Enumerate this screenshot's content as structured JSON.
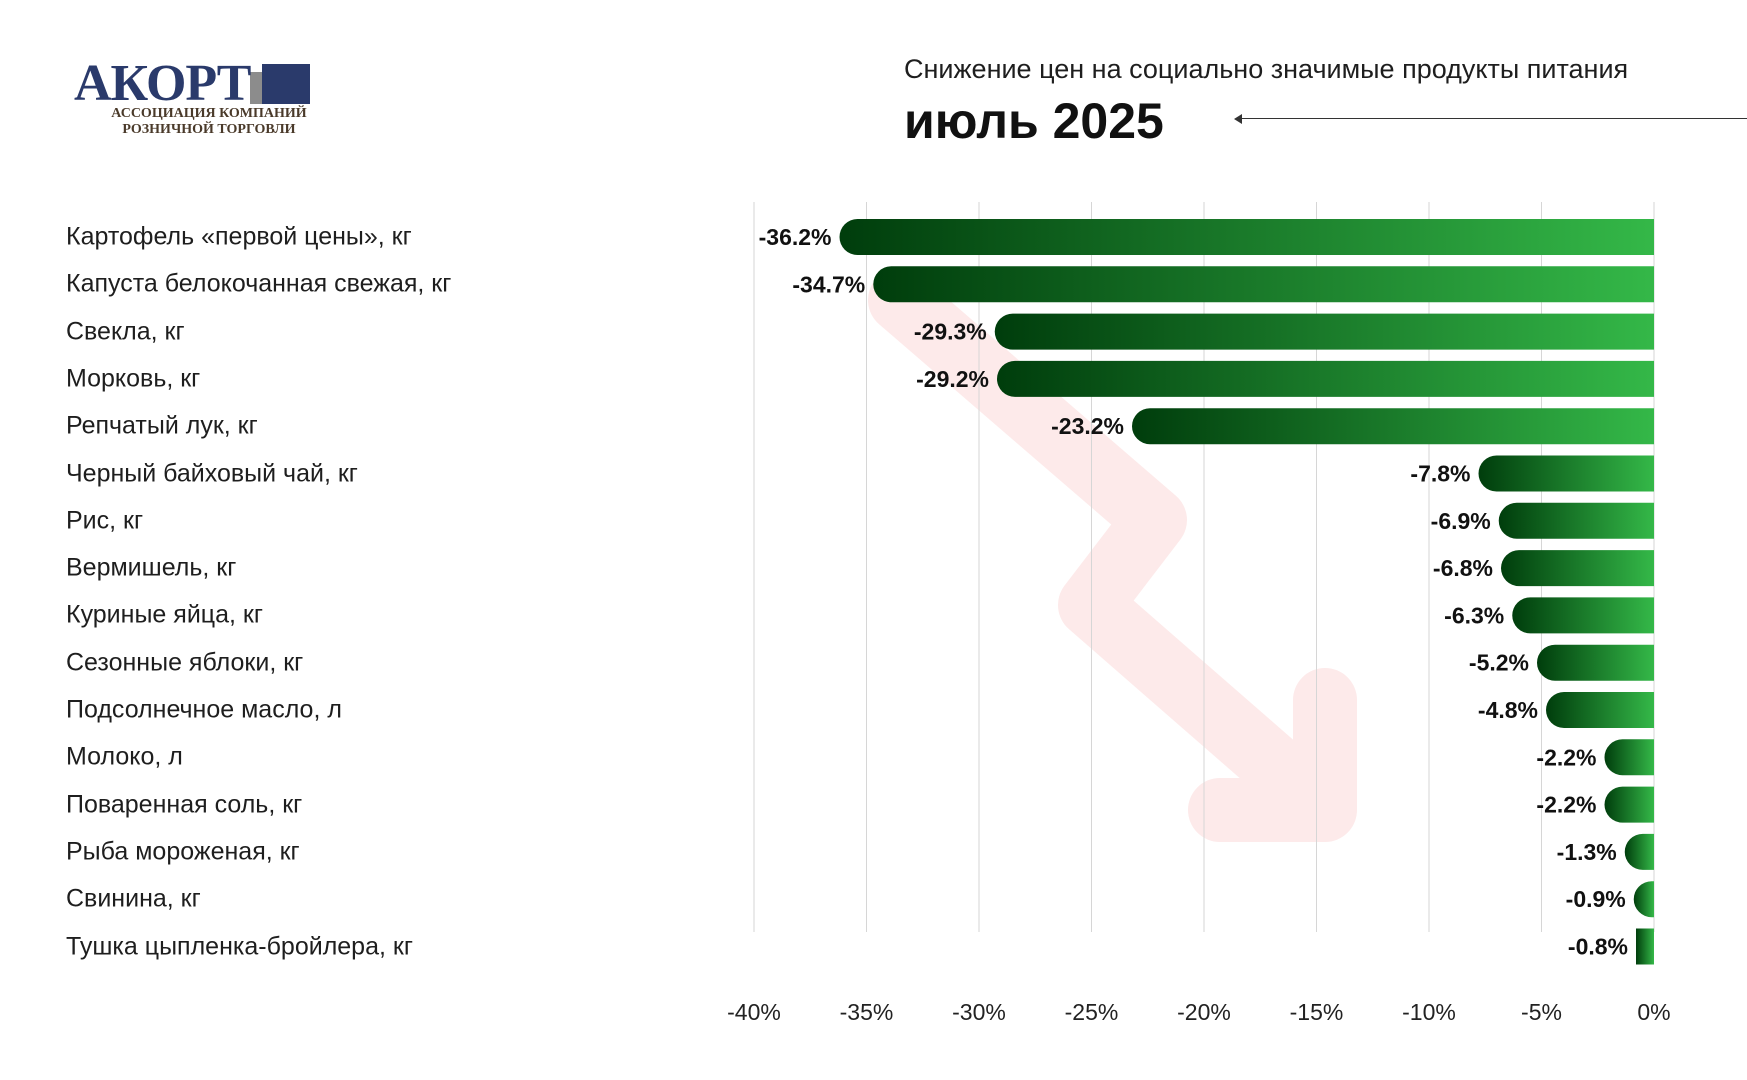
{
  "logo": {
    "word": "АКОРТ",
    "line1": "АССОЦИАЦИЯ КОМПАНИЙ",
    "line2": "РОЗНИЧНОЙ ТОРГОВЛИ"
  },
  "header": {
    "subtitle": "Снижение цен на социально значимые продукты питания",
    "title": "июль 2025"
  },
  "colors": {
    "bar_dark": "#003d0c",
    "bar_light": "#34b848",
    "grid": "#d6d6d6",
    "arrow_bg": "#fdeaea"
  },
  "chart_data": {
    "type": "bar",
    "orientation": "horizontal",
    "categories": [
      "Картофель «первой цены», кг",
      "Капуста белокочанная свежая, кг",
      "Свекла, кг",
      "Морковь, кг",
      "Репчатый лук, кг",
      "Черный байховый чай, кг",
      "Рис, кг",
      "Вермишель, кг",
      "Куриные яйца, кг",
      "Сезонные яблоки, кг",
      "Подсолнечное масло, л",
      "Молоко, л",
      "Поваренная соль, кг",
      "Рыба мороженая, кг",
      "Свинина, кг",
      "Тушка цыпленка-бройлера, кг"
    ],
    "values": [
      -36.2,
      -34.7,
      -29.3,
      -29.2,
      -23.2,
      -7.8,
      -6.9,
      -6.8,
      -6.3,
      -5.2,
      -4.8,
      -2.2,
      -2.2,
      -1.3,
      -0.9,
      -0.8
    ],
    "value_labels": [
      "-36.2%",
      "-34.7%",
      "-29.3%",
      "-29.2%",
      "-23.2%",
      "-7.8%",
      "-6.9%",
      "-6.8%",
      "-6.3%",
      "-5.2%",
      "-4.8%",
      "-2.2%",
      "-2.2%",
      "-1.3%",
      "-0.9%",
      "-0.8%"
    ],
    "xlim": [
      -40,
      0
    ],
    "xticks": [
      -40,
      -35,
      -30,
      -25,
      -20,
      -15,
      -10,
      -5,
      0
    ],
    "xtick_labels": [
      "-40%",
      "-35%",
      "-30%",
      "-25%",
      "-20%",
      "-15%",
      "-10%",
      "-5%",
      "0%"
    ],
    "grid": true
  }
}
